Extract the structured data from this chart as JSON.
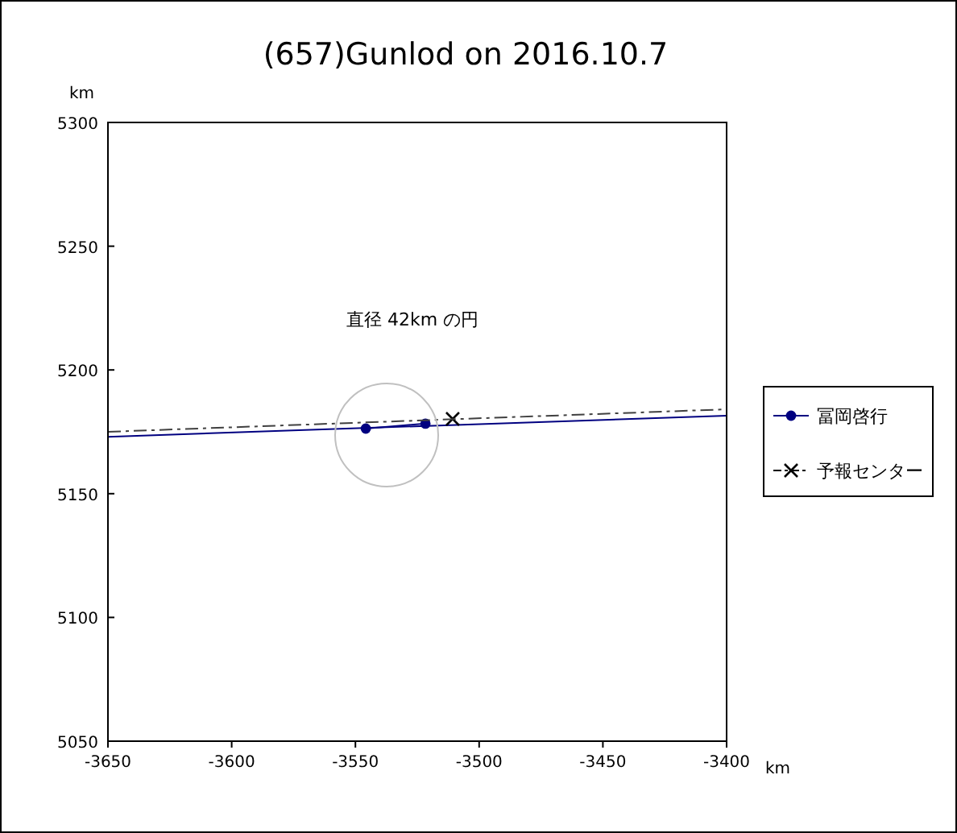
{
  "chart_data": {
    "type": "line",
    "title": "(657)Gunlod on 2016.10.7",
    "xlabel": "km",
    "ylabel": "km",
    "xlim": [
      -3650,
      -3400
    ],
    "xticks": [
      -3650,
      -3600,
      -3550,
      -3500,
      -3450,
      -3400
    ],
    "ylim": [
      5050,
      5300
    ],
    "yticks": [
      5050,
      5100,
      5150,
      5200,
      5250,
      5300
    ],
    "grid": false,
    "legend": "right",
    "annotations": [
      "直径 42km の円"
    ],
    "series": [
      {
        "name": "冨岡啓行",
        "color": "#000080",
        "marker": "circle",
        "line_style": "solid",
        "x": [
          -3545.8,
          -3521.7
        ],
        "values": [
          5176.3,
          5178.3
        ]
      },
      {
        "color": "#000080",
        "marker": "none",
        "line_style": "solid",
        "x": [
          -3650,
          -3400
        ],
        "values": [
          5173,
          5181.5
        ]
      },
      {
        "name": "予報センター",
        "color": "#000000",
        "marker": "cross",
        "line_style": "dashed",
        "x": [
          -3510.7
        ],
        "values": [
          5180.2
        ]
      },
      {
        "color": "#404040",
        "marker": "none",
        "line_style": "dashed",
        "x": [
          -3650,
          -3400
        ],
        "values": [
          5175,
          5184.1
        ]
      }
    ]
  }
}
